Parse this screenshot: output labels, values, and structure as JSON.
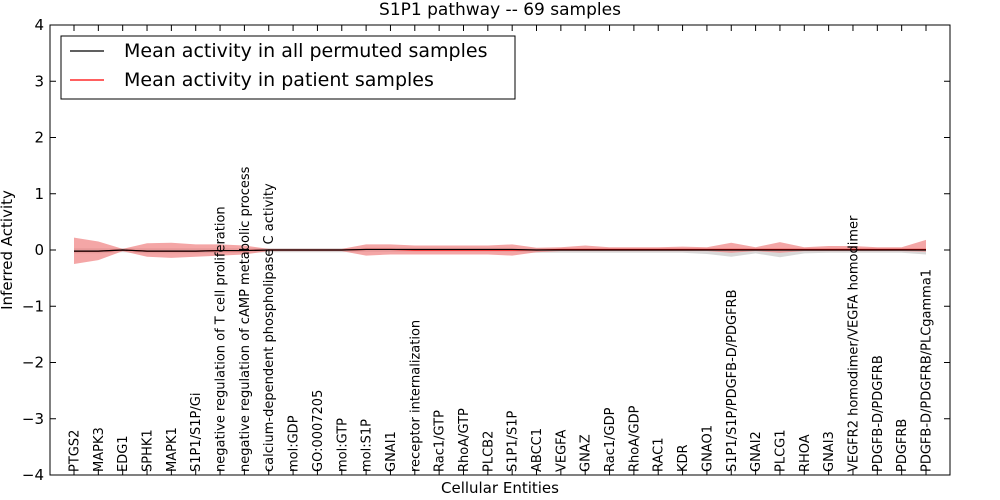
{
  "chart_data": {
    "type": "line",
    "title": "S1P1 pathway -- 69 samples",
    "xlabel": "Cellular Entities",
    "ylabel": "Inferred Activity",
    "ylim": [
      -4,
      4
    ],
    "yticks": [
      4,
      3,
      2,
      1,
      0,
      -1,
      -2,
      -3,
      -4
    ],
    "ytick_labels": [
      "4",
      "3",
      "2",
      "1",
      "0",
      "−1",
      "−2",
      "−3",
      "−4"
    ],
    "legend_position": "top-left",
    "categories": [
      "PTGS2",
      "MAPK3",
      "EDG1",
      "SPHK1",
      "MAPK1",
      "S1P1/S1P/Gi",
      "negative regulation of T cell proliferation",
      "negative regulation of cAMP metabolic process",
      "calcium-dependent phospholipase C activity",
      "mol:GDP",
      "GO:0007205",
      "mol:GTP",
      "mol:S1P",
      "GNAI1",
      "receptor internalization",
      "Rac1/GTP",
      "RhoA/GTP",
      "PLCB2",
      "S1P1/S1P",
      "ABCC1",
      "VEGFA",
      "GNAZ",
      "Rac1/GDP",
      "RhoA/GDP",
      "RAC1",
      "KDR",
      "GNAO1",
      "S1P1/S1P/PDGFB-D/PDGFRB",
      "GNAI2",
      "PLCG1",
      "RHOA",
      "GNAI3",
      "VEGFR2 homodimer/VEGFA homodimer",
      "PDGFB-D/PDGFRB",
      "PDGFRB",
      "PDGFB-D/PDGFRB/PLCgamma1"
    ],
    "series": [
      {
        "name": "Mean activity in all permuted samples",
        "color": "#000000",
        "band_color": "#c8c8c8",
        "values": [
          -0.02,
          -0.02,
          0,
          -0.02,
          -0.02,
          -0.02,
          -0.01,
          -0.01,
          0,
          0,
          0,
          0,
          0.01,
          0.01,
          0.01,
          0.01,
          0.01,
          0.01,
          0.01,
          0,
          0,
          0,
          0,
          0,
          0,
          0,
          0,
          0,
          0,
          0,
          0,
          0,
          0,
          0,
          0,
          0
        ],
        "upper": [
          0.03,
          0.03,
          0.03,
          0.03,
          0.03,
          0.03,
          0.03,
          0.03,
          0.03,
          0.03,
          0.03,
          0.03,
          0.04,
          0.04,
          0.04,
          0.04,
          0.04,
          0.04,
          0.04,
          0.03,
          0.03,
          0.03,
          0.03,
          0.03,
          0.03,
          0.03,
          0.03,
          0.03,
          0.03,
          0.03,
          0.03,
          0.03,
          0.03,
          0.03,
          0.03,
          0.03
        ],
        "lower": [
          -0.06,
          -0.06,
          -0.04,
          -0.06,
          -0.06,
          -0.06,
          -0.05,
          -0.05,
          -0.04,
          -0.04,
          -0.04,
          -0.04,
          -0.03,
          -0.03,
          -0.03,
          -0.03,
          -0.03,
          -0.03,
          -0.03,
          -0.05,
          -0.05,
          -0.05,
          -0.05,
          -0.05,
          -0.05,
          -0.05,
          -0.07,
          -0.12,
          -0.06,
          -0.13,
          -0.06,
          -0.05,
          -0.05,
          -0.05,
          -0.05,
          -0.08
        ]
      },
      {
        "name": "Mean activity in patient samples",
        "color": "#ff0000",
        "band_color": "#f08080",
        "values": [
          -0.02,
          -0.02,
          0,
          -0.02,
          -0.02,
          -0.02,
          -0.01,
          -0.01,
          0,
          0,
          0,
          0,
          0.01,
          0.01,
          0,
          0,
          0,
          0,
          0,
          0,
          0.01,
          0.01,
          0.01,
          0.01,
          0.01,
          0.01,
          0.01,
          0.01,
          0.01,
          0.01,
          0.01,
          0.01,
          0.01,
          0.01,
          0.01,
          0.01
        ],
        "upper": [
          0.22,
          0.15,
          0.02,
          0.12,
          0.13,
          0.1,
          0.1,
          0.08,
          0.02,
          0.02,
          0.02,
          0.02,
          0.1,
          0.1,
          0.08,
          0.08,
          0.08,
          0.08,
          0.1,
          0.04,
          0.05,
          0.08,
          0.05,
          0.05,
          0.05,
          0.06,
          0.05,
          0.13,
          0.05,
          0.14,
          0.05,
          0.07,
          0.07,
          0.05,
          0.05,
          0.18
        ],
        "lower": [
          -0.25,
          -0.18,
          -0.02,
          -0.12,
          -0.14,
          -0.12,
          -0.1,
          -0.08,
          -0.02,
          -0.02,
          -0.02,
          -0.02,
          -0.1,
          -0.08,
          -0.08,
          -0.08,
          -0.08,
          -0.08,
          -0.1,
          -0.04,
          -0.02,
          -0.02,
          -0.02,
          -0.02,
          -0.02,
          -0.02,
          -0.02,
          -0.05,
          -0.02,
          -0.05,
          -0.02,
          -0.02,
          -0.02,
          -0.02,
          -0.02,
          -0.03
        ]
      }
    ]
  }
}
